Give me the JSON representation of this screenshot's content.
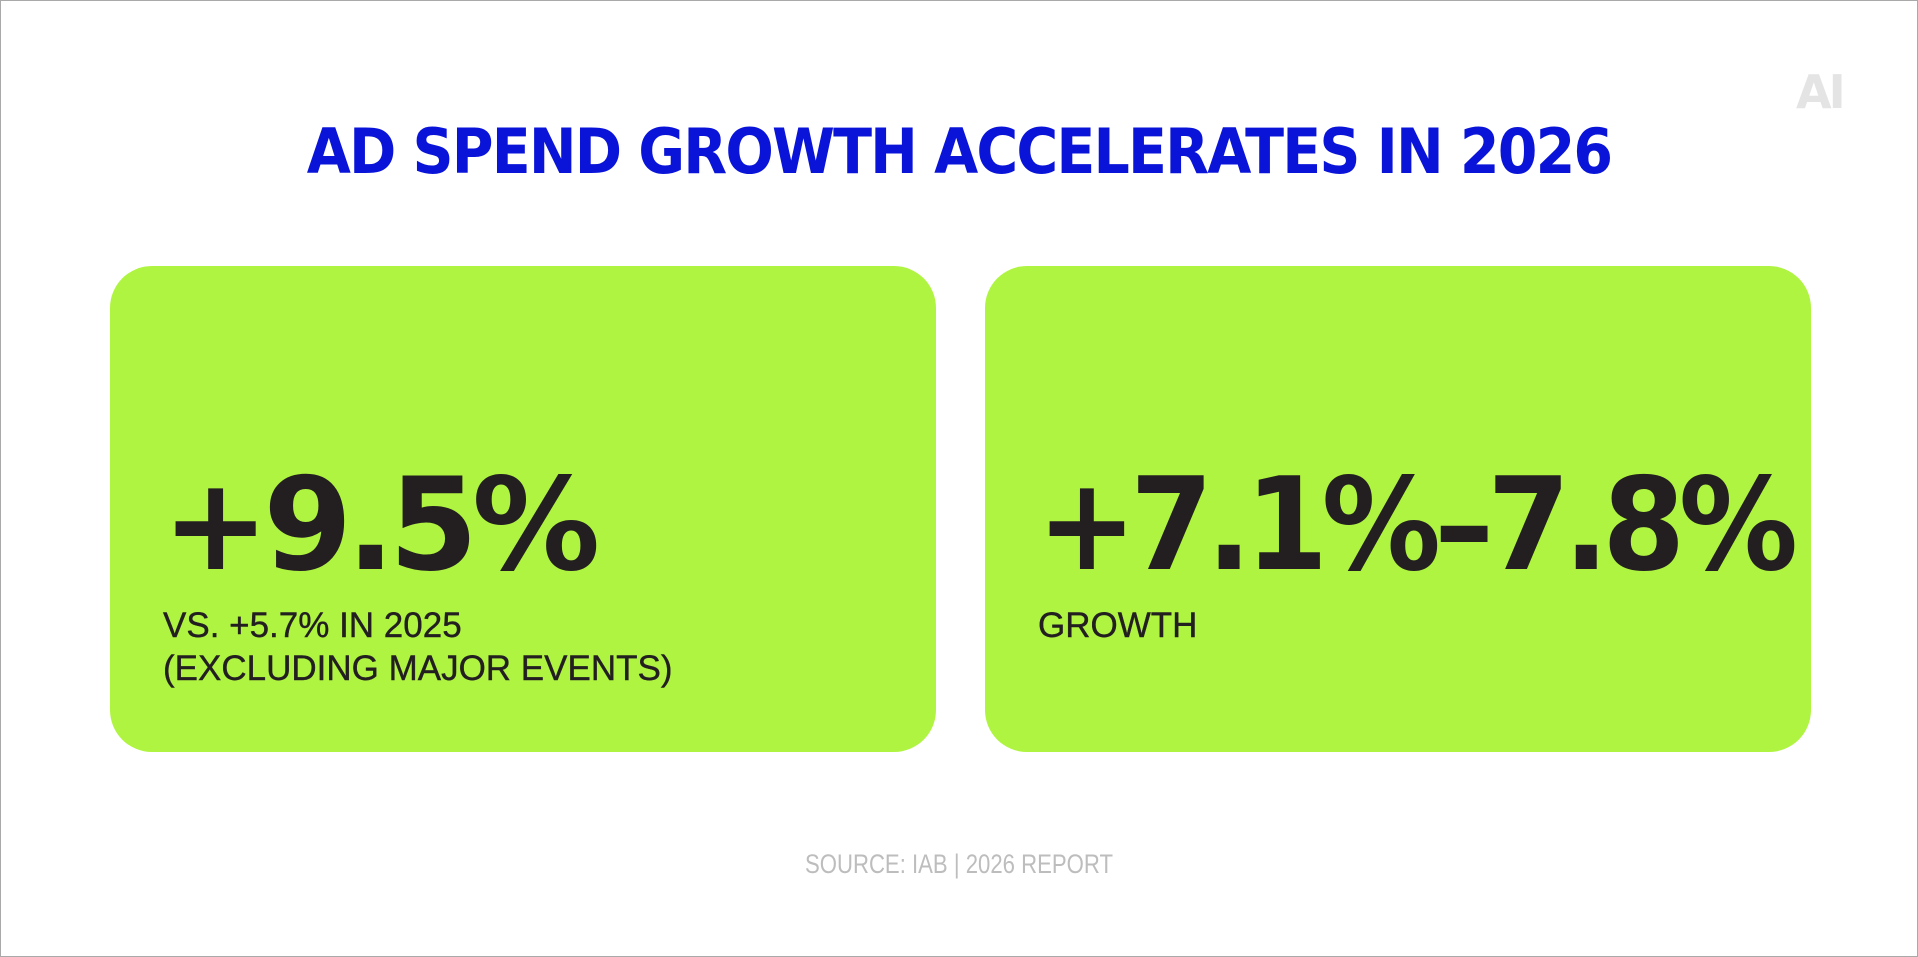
{
  "logo": {
    "text": "AI",
    "color": "#e4e4e4"
  },
  "title": {
    "text": "AD SPEND GROWTH ACCELERATES IN 2026",
    "color": "#0a14d8"
  },
  "cards": [
    {
      "value": "+9.5%",
      "caption_lines": [
        "VS. +5.7% IN 2025",
        "(EXCLUDING MAJOR EVENTS)"
      ],
      "background": "#b0f442"
    },
    {
      "value": "+7.1%–7.8%",
      "caption_lines": [
        "GROWTH"
      ],
      "background": "#b0f442"
    }
  ],
  "source": {
    "text": "SOURCE: IAB | 2026 REPORT",
    "color": "#bdbdbd"
  }
}
